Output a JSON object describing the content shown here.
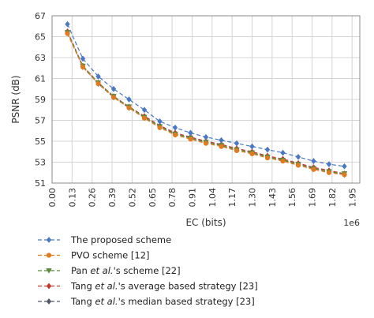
{
  "chart_data": {
    "type": "line",
    "xlabel": "EC (bits)",
    "ylabel": "PSNR (dB)",
    "x_exponent_label": "1e6",
    "xlim": [
      0.0,
      2.0
    ],
    "ylim": [
      51,
      67
    ],
    "xticks": [
      0.0,
      0.13,
      0.26,
      0.39,
      0.52,
      0.65,
      0.78,
      0.91,
      1.04,
      1.17,
      1.3,
      1.43,
      1.56,
      1.69,
      1.82,
      1.95
    ],
    "xtick_labels": [
      "0.00",
      "0.13",
      "0.26",
      "0.39",
      "0.52",
      "0.65",
      "0.78",
      "0.91",
      "1.04",
      "1.17",
      "1.30",
      "1.43",
      "1.56",
      "1.69",
      "1.82",
      "1.95"
    ],
    "yticks": [
      51,
      53,
      55,
      57,
      59,
      61,
      63,
      65,
      67
    ],
    "ytick_labels": [
      "51",
      "53",
      "55",
      "57",
      "59",
      "61",
      "63",
      "65",
      "67"
    ],
    "grid": true,
    "legend_position": "below",
    "series": [
      {
        "legend": [
          {
            "text": "The proposed scheme",
            "italic": false
          }
        ],
        "color": "#4a78c2",
        "marker": "diamond",
        "x": [
          0.1,
          0.2,
          0.3,
          0.4,
          0.5,
          0.6,
          0.7,
          0.8,
          0.9,
          1.0,
          1.1,
          1.2,
          1.3,
          1.4,
          1.5,
          1.6,
          1.7,
          1.8,
          1.9
        ],
        "values": [
          66.2,
          62.9,
          61.2,
          60.0,
          59.0,
          58.0,
          56.9,
          56.3,
          55.8,
          55.4,
          55.1,
          54.8,
          54.5,
          54.2,
          53.9,
          53.5,
          53.1,
          52.8,
          52.6
        ]
      },
      {
        "legend": [
          {
            "text": "PVO scheme [12]",
            "italic": false
          }
        ],
        "color": "#e07b20",
        "marker": "circle",
        "x": [
          0.1,
          0.2,
          0.3,
          0.4,
          0.5,
          0.6,
          0.7,
          0.8,
          0.9,
          1.0,
          1.1,
          1.2,
          1.3,
          1.4,
          1.5,
          1.6,
          1.7,
          1.8,
          1.9
        ],
        "values": [
          65.3,
          62.1,
          60.5,
          59.2,
          58.2,
          57.2,
          56.3,
          55.6,
          55.2,
          54.8,
          54.5,
          54.1,
          53.8,
          53.4,
          53.1,
          52.7,
          52.3,
          52.0,
          51.8
        ]
      },
      {
        "legend": [
          {
            "text": "Pan ",
            "italic": false
          },
          {
            "text": "et al.",
            "italic": true
          },
          {
            "text": "'s scheme [22]",
            "italic": false
          }
        ],
        "color": "#5a8a3a",
        "marker": "triangle-down",
        "x": [
          0.1,
          0.2,
          0.3,
          0.4,
          0.5,
          0.6,
          0.7,
          0.8,
          0.9,
          1.0,
          1.1,
          1.2,
          1.3,
          1.4,
          1.5,
          1.6,
          1.7,
          1.8,
          1.9
        ],
        "values": [
          65.4,
          62.2,
          60.6,
          59.3,
          58.3,
          57.3,
          56.4,
          55.7,
          55.3,
          54.9,
          54.6,
          54.2,
          53.9,
          53.5,
          53.2,
          52.8,
          52.4,
          52.1,
          51.9
        ]
      },
      {
        "legend": [
          {
            "text": "Tang ",
            "italic": false
          },
          {
            "text": "et al.",
            "italic": true
          },
          {
            "text": "'s average based strategy [23]",
            "italic": false
          }
        ],
        "color": "#c0392b",
        "marker": "diamond",
        "x": [
          0.1,
          0.2,
          0.3,
          0.4,
          0.5,
          0.6,
          0.7,
          0.8,
          0.9,
          1.0,
          1.1,
          1.2,
          1.3,
          1.4,
          1.5,
          1.6,
          1.7,
          1.8,
          1.9
        ],
        "values": [
          65.5,
          62.2,
          60.6,
          59.3,
          58.3,
          57.4,
          56.5,
          55.8,
          55.4,
          55.0,
          54.7,
          54.3,
          54.0,
          53.6,
          53.3,
          52.9,
          52.5,
          52.2,
          51.9
        ]
      },
      {
        "legend": [
          {
            "text": "Tang ",
            "italic": false
          },
          {
            "text": "et al.",
            "italic": true
          },
          {
            "text": "'s median based strategy [23]",
            "italic": false
          }
        ],
        "color": "#555a6a",
        "marker": "diamond",
        "x": [
          0.1,
          0.2,
          0.3,
          0.4,
          0.5,
          0.6,
          0.7,
          0.8,
          0.9,
          1.0,
          1.1,
          1.2,
          1.3,
          1.4,
          1.5,
          1.6,
          1.7,
          1.8,
          1.9
        ],
        "values": [
          65.4,
          62.1,
          60.5,
          59.2,
          58.2,
          57.3,
          56.4,
          55.7,
          55.3,
          54.9,
          54.6,
          54.2,
          53.9,
          53.5,
          53.2,
          52.8,
          52.4,
          52.1,
          51.8
        ]
      }
    ]
  }
}
